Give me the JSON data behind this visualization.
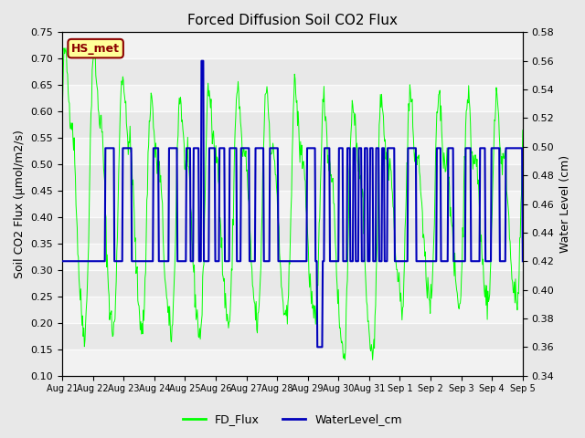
{
  "title": "Forced Diffusion Soil CO2 Flux",
  "ylabel_left": "Soil CO2 Flux (μmol/m2/s)",
  "ylabel_right": "Water Level (cm)",
  "ylim_left": [
    0.1,
    0.75
  ],
  "ylim_right": [
    0.34,
    0.58
  ],
  "yticks_left": [
    0.1,
    0.15,
    0.2,
    0.25,
    0.3,
    0.35,
    0.4,
    0.45,
    0.5,
    0.55,
    0.6,
    0.65,
    0.7,
    0.75
  ],
  "yticks_right": [
    0.34,
    0.36,
    0.38,
    0.4,
    0.42,
    0.44,
    0.46,
    0.48,
    0.5,
    0.52,
    0.54,
    0.56,
    0.58
  ],
  "bg_color": "#e8e8e8",
  "band_light": "#f0f0f0",
  "band_dark": "#d8d8d8",
  "fd_flux_color": "#00ff00",
  "water_level_color": "#0000bb",
  "annotation_text": "HS_met",
  "annotation_bg": "#ffff99",
  "annotation_border": "#8b0000",
  "annotation_text_color": "#8b0000",
  "legend_fd": "FD_Flux",
  "legend_water": "WaterLevel_cm",
  "xtick_labels": [
    "Aug 21",
    "Aug 22",
    "Aug 23",
    "Aug 24",
    "Aug 25",
    "Aug 26",
    "Aug 27",
    "Aug 28",
    "Aug 29",
    "Aug 30",
    "Aug 31",
    "Sep 1",
    "Sep 2",
    "Sep 3",
    "Sep 4",
    "Sep 5"
  ],
  "n_days": 16,
  "seed": 42
}
